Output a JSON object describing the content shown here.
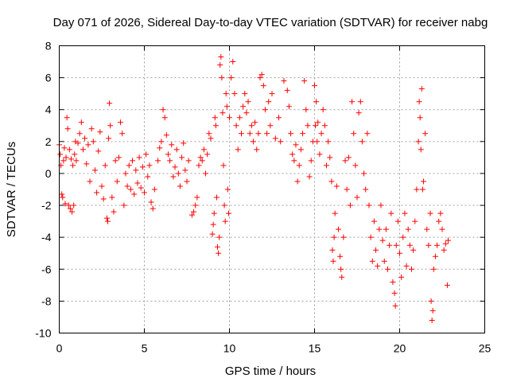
{
  "chart_data": {
    "type": "scatter",
    "title": "Day 071 of 2026, Sidereal Day-to-day VTEC variation (SDTVAR) for receiver nabg",
    "xlabel": "GPS time / hours",
    "ylabel": "SDTVAR / TECUs",
    "xlim": [
      0,
      25
    ],
    "ylim": [
      -10,
      8
    ],
    "xticks": [
      0,
      5,
      10,
      15,
      20,
      25
    ],
    "yticks": [
      -10,
      -8,
      -6,
      -4,
      -2,
      0,
      2,
      4,
      6,
      8
    ],
    "grid": true,
    "marker": "+",
    "color": "#ff0000",
    "series": [
      {
        "name": "SDTVAR",
        "points": [
          [
            0.0,
            1.8
          ],
          [
            0.05,
            1.2
          ],
          [
            0.1,
            0.5
          ],
          [
            0.15,
            -1.3
          ],
          [
            0.2,
            -1.5
          ],
          [
            0.25,
            0.8
          ],
          [
            0.3,
            1.6
          ],
          [
            0.35,
            -1.9
          ],
          [
            0.4,
            1.0
          ],
          [
            0.45,
            3.5
          ],
          [
            0.5,
            2.8
          ],
          [
            0.55,
            -2.0
          ],
          [
            0.6,
            1.5
          ],
          [
            0.65,
            -2.2
          ],
          [
            0.7,
            0.9
          ],
          [
            0.75,
            -2.4
          ],
          [
            0.8,
            0.5
          ],
          [
            0.85,
            -2.0
          ],
          [
            0.9,
            1.2
          ],
          [
            0.95,
            2.0
          ],
          [
            1.0,
            0.8
          ],
          [
            1.1,
            1.9
          ],
          [
            1.2,
            2.5
          ],
          [
            1.3,
            3.2
          ],
          [
            1.4,
            1.5
          ],
          [
            1.5,
            2.2
          ],
          [
            1.6,
            0.6
          ],
          [
            1.7,
            1.8
          ],
          [
            1.8,
            -0.5
          ],
          [
            1.9,
            2.8
          ],
          [
            2.0,
            2.0
          ],
          [
            2.1,
            0.2
          ],
          [
            2.2,
            -1.2
          ],
          [
            2.3,
            1.4
          ],
          [
            2.4,
            2.6
          ],
          [
            2.5,
            -0.8
          ],
          [
            2.6,
            -1.6
          ],
          [
            2.7,
            0.5
          ],
          [
            2.8,
            -2.8
          ],
          [
            2.85,
            -3.0
          ],
          [
            2.9,
            2.2
          ],
          [
            2.95,
            4.4
          ],
          [
            3.0,
            3.0
          ],
          [
            3.1,
            -1.5
          ],
          [
            3.2,
            -2.4
          ],
          [
            3.3,
            0.8
          ],
          [
            3.4,
            -0.5
          ],
          [
            3.5,
            1.0
          ],
          [
            3.6,
            3.2
          ],
          [
            3.7,
            2.5
          ],
          [
            3.8,
            -2.0
          ],
          [
            3.9,
            0.0
          ],
          [
            4.0,
            -0.8
          ],
          [
            4.1,
            0.5
          ],
          [
            4.2,
            -1.0
          ],
          [
            4.3,
            0.8
          ],
          [
            4.4,
            -1.3
          ],
          [
            4.5,
            0.2
          ],
          [
            4.6,
            -0.6
          ],
          [
            4.7,
            1.0
          ],
          [
            4.8,
            -0.9
          ],
          [
            4.9,
            0.4
          ],
          [
            5.0,
            -1.2
          ],
          [
            5.1,
            1.2
          ],
          [
            5.2,
            -0.2
          ],
          [
            5.3,
            0.5
          ],
          [
            5.4,
            -1.8
          ],
          [
            5.5,
            -2.2
          ],
          [
            5.6,
            -1.0
          ],
          [
            5.8,
            0.8
          ],
          [
            5.9,
            1.6
          ],
          [
            6.0,
            2.0
          ],
          [
            6.1,
            4.0
          ],
          [
            6.2,
            3.5
          ],
          [
            6.3,
            2.4
          ],
          [
            6.4,
            1.2
          ],
          [
            6.5,
            0.8
          ],
          [
            6.6,
            1.8
          ],
          [
            6.7,
            -0.2
          ],
          [
            6.8,
            0.4
          ],
          [
            6.9,
            1.5
          ],
          [
            7.0,
            0.0
          ],
          [
            7.1,
            -0.8
          ],
          [
            7.2,
            1.0
          ],
          [
            7.3,
            1.9
          ],
          [
            7.4,
            0.2
          ],
          [
            7.5,
            -0.5
          ],
          [
            7.6,
            0.8
          ],
          [
            7.8,
            -2.6
          ],
          [
            7.9,
            -2.4
          ],
          [
            8.0,
            -2.0
          ],
          [
            8.1,
            -1.5
          ],
          [
            8.2,
            0.5
          ],
          [
            8.3,
            1.0
          ],
          [
            8.4,
            0.8
          ],
          [
            8.5,
            1.5
          ],
          [
            8.6,
            0.0
          ],
          [
            8.7,
            1.2
          ],
          [
            8.8,
            2.5
          ],
          [
            8.9,
            2.2
          ],
          [
            9.0,
            -3.8
          ],
          [
            9.05,
            -3.2
          ],
          [
            9.1,
            -2.5
          ],
          [
            9.15,
            3.5
          ],
          [
            9.2,
            3.0
          ],
          [
            9.25,
            -1.5
          ],
          [
            9.3,
            -4.6
          ],
          [
            9.35,
            -5.0
          ],
          [
            9.4,
            -4.0
          ],
          [
            9.45,
            6.8
          ],
          [
            9.5,
            7.3
          ],
          [
            9.55,
            6.0
          ],
          [
            9.6,
            3.8
          ],
          [
            9.65,
            0.5
          ],
          [
            9.7,
            -2.0
          ],
          [
            9.75,
            -3.0
          ],
          [
            9.8,
            5.0
          ],
          [
            9.85,
            4.2
          ],
          [
            9.9,
            -1.0
          ],
          [
            9.95,
            -2.5
          ],
          [
            10.0,
            3.5
          ],
          [
            10.1,
            6.0
          ],
          [
            10.2,
            7.0
          ],
          [
            10.3,
            5.0
          ],
          [
            10.4,
            3.0
          ],
          [
            10.5,
            1.5
          ],
          [
            10.6,
            3.5
          ],
          [
            10.7,
            2.5
          ],
          [
            10.8,
            4.2
          ],
          [
            10.9,
            5.0
          ],
          [
            11.0,
            3.8
          ],
          [
            11.1,
            4.5
          ],
          [
            11.2,
            2.5
          ],
          [
            11.3,
            3.0
          ],
          [
            11.4,
            2.0
          ],
          [
            11.5,
            3.2
          ],
          [
            11.6,
            1.5
          ],
          [
            11.7,
            2.5
          ],
          [
            11.8,
            6.0
          ],
          [
            11.9,
            6.2
          ],
          [
            12.0,
            5.5
          ],
          [
            12.1,
            4.0
          ],
          [
            12.2,
            2.5
          ],
          [
            12.3,
            4.5
          ],
          [
            12.4,
            3.0
          ],
          [
            12.5,
            5.0
          ],
          [
            12.7,
            2.2
          ],
          [
            12.9,
            3.5
          ],
          [
            13.0,
            2.0
          ],
          [
            13.2,
            5.8
          ],
          [
            13.4,
            5.2
          ],
          [
            13.5,
            4.2
          ],
          [
            13.6,
            2.5
          ],
          [
            13.7,
            1.2
          ],
          [
            13.8,
            0.8
          ],
          [
            13.9,
            1.8
          ],
          [
            14.0,
            -0.5
          ],
          [
            14.1,
            0.5
          ],
          [
            14.2,
            1.5
          ],
          [
            14.3,
            2.5
          ],
          [
            14.4,
            5.8
          ],
          [
            14.5,
            4.0
          ],
          [
            14.6,
            3.0
          ],
          [
            14.7,
            -0.2
          ],
          [
            14.8,
            0.8
          ],
          [
            14.9,
            2.0
          ],
          [
            15.0,
            5.5
          ],
          [
            15.05,
            3.0
          ],
          [
            15.1,
            4.5
          ],
          [
            15.15,
            2.0
          ],
          [
            15.2,
            3.2
          ],
          [
            15.3,
            1.2
          ],
          [
            15.4,
            2.5
          ],
          [
            15.5,
            4.0
          ],
          [
            15.6,
            3.0
          ],
          [
            15.7,
            0.5
          ],
          [
            15.8,
            2.0
          ],
          [
            15.9,
            1.0
          ],
          [
            16.0,
            -0.5
          ],
          [
            16.05,
            -4.8
          ],
          [
            16.1,
            -5.5
          ],
          [
            16.15,
            -4.0
          ],
          [
            16.2,
            -2.5
          ],
          [
            16.3,
            -0.8
          ],
          [
            16.4,
            -3.5
          ],
          [
            16.5,
            -5.2
          ],
          [
            16.55,
            -6.0
          ],
          [
            16.6,
            -6.5
          ],
          [
            16.7,
            -4.0
          ],
          [
            16.8,
            0.8
          ],
          [
            16.9,
            -1.0
          ],
          [
            17.0,
            1.0
          ],
          [
            17.1,
            -2.0
          ],
          [
            17.2,
            4.5
          ],
          [
            17.3,
            2.5
          ],
          [
            17.4,
            0.5
          ],
          [
            17.5,
            -1.5
          ],
          [
            17.6,
            3.8
          ],
          [
            17.7,
            4.5
          ],
          [
            17.8,
            2.0
          ],
          [
            17.9,
            0.0
          ],
          [
            18.0,
            -1.0
          ],
          [
            18.1,
            2.5
          ],
          [
            18.2,
            -2.0
          ],
          [
            18.3,
            -4.0
          ],
          [
            18.4,
            -5.5
          ],
          [
            18.5,
            -3.0
          ],
          [
            18.6,
            -4.8
          ],
          [
            18.7,
            -5.8
          ],
          [
            18.8,
            -3.5
          ],
          [
            18.9,
            -2.0
          ],
          [
            19.0,
            -4.2
          ],
          [
            19.1,
            -5.5
          ],
          [
            19.2,
            -3.5
          ],
          [
            19.3,
            -6.0
          ],
          [
            19.4,
            -4.5
          ],
          [
            19.5,
            -2.5
          ],
          [
            19.6,
            -6.8
          ],
          [
            19.7,
            -7.5
          ],
          [
            19.75,
            -8.3
          ],
          [
            19.8,
            -4.5
          ],
          [
            19.9,
            -3.0
          ],
          [
            20.0,
            -5.0
          ],
          [
            20.1,
            -6.5
          ],
          [
            20.2,
            -4.0
          ],
          [
            20.3,
            -2.5
          ],
          [
            20.4,
            -5.8
          ],
          [
            20.5,
            -3.5
          ],
          [
            20.6,
            -4.5
          ],
          [
            20.7,
            -6.0
          ],
          [
            20.8,
            -4.8
          ],
          [
            20.9,
            -3.0
          ],
          [
            21.0,
            -1.0
          ],
          [
            21.1,
            2.0
          ],
          [
            21.15,
            4.5
          ],
          [
            21.2,
            3.5
          ],
          [
            21.25,
            1.5
          ],
          [
            21.3,
            5.3
          ],
          [
            21.35,
            -1.0
          ],
          [
            21.4,
            -0.5
          ],
          [
            21.5,
            2.5
          ],
          [
            21.6,
            -3.5
          ],
          [
            21.7,
            -4.5
          ],
          [
            21.8,
            -2.5
          ],
          [
            21.85,
            -8.0
          ],
          [
            21.9,
            -9.2
          ],
          [
            21.95,
            -8.6
          ],
          [
            22.0,
            -6.0
          ],
          [
            22.1,
            -5.2
          ],
          [
            22.2,
            -4.5
          ],
          [
            22.3,
            -3.0
          ],
          [
            22.4,
            -2.5
          ],
          [
            22.5,
            -3.5
          ],
          [
            22.6,
            -4.8
          ],
          [
            22.7,
            -4.4
          ],
          [
            22.8,
            -7.0
          ],
          [
            22.85,
            -4.2
          ]
        ]
      }
    ]
  }
}
